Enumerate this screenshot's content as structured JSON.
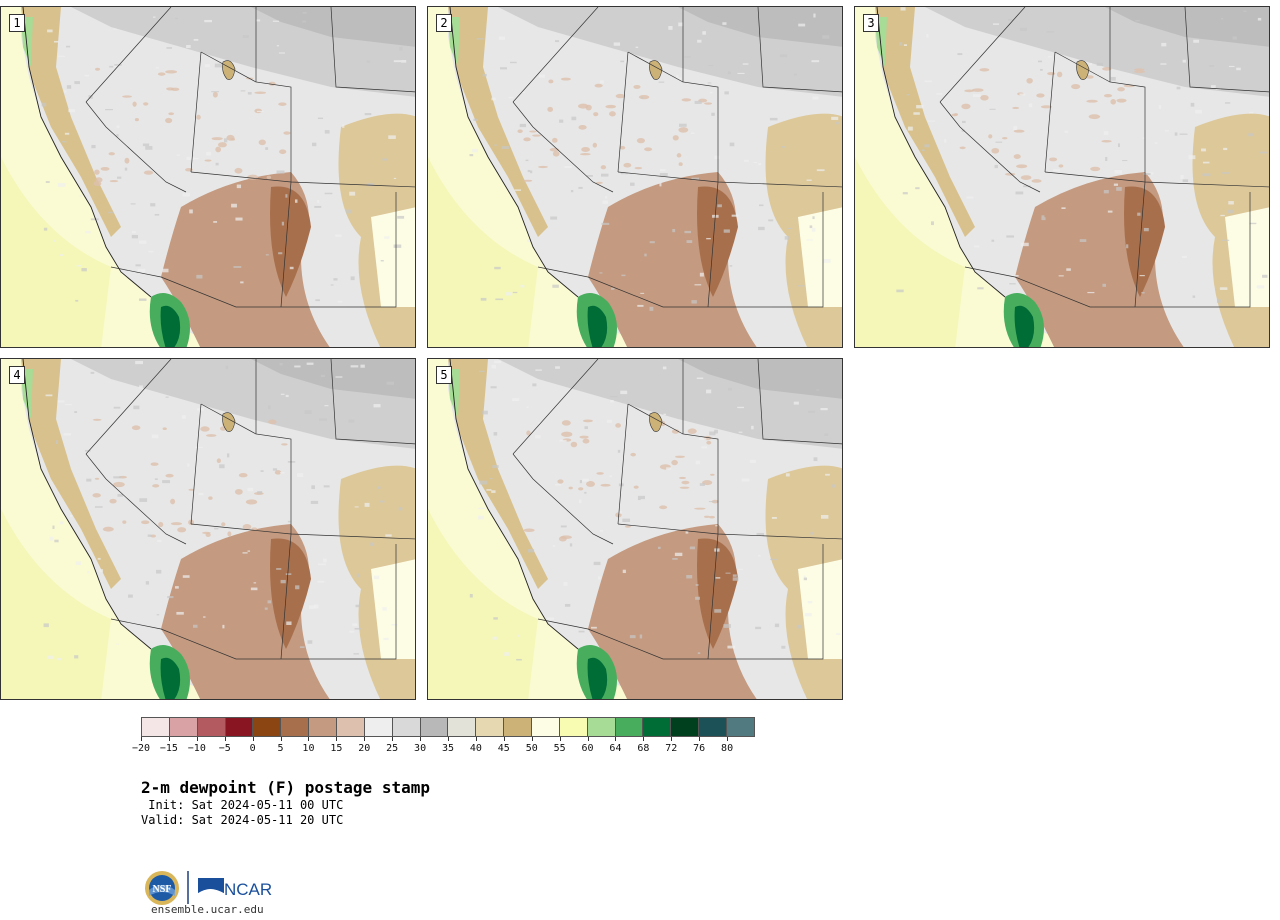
{
  "product": {
    "title": "2-m dewpoint (F) postage stamp",
    "init": " Init: Sat 2024-05-11 00 UTC",
    "valid": "Valid: Sat 2024-05-11 20 UTC"
  },
  "members": [
    {
      "label": "1"
    },
    {
      "label": "2"
    },
    {
      "label": "3"
    },
    {
      "label": "4"
    },
    {
      "label": "5"
    }
  ],
  "colorbar": {
    "tick_labels": [
      "−20",
      "−15",
      "−10",
      "−5",
      "0",
      "5",
      "10",
      "15",
      "20",
      "25",
      "30",
      "35",
      "40",
      "45",
      "50",
      "55",
      "60",
      "64",
      "68",
      "72",
      "76",
      "80"
    ],
    "colors": [
      "#f4e6e6",
      "#d9a3a5",
      "#b35a60",
      "#8a1522",
      "#8b4513",
      "#a86f4c",
      "#c49a80",
      "#ddc0ad",
      "#eeeeee",
      "#d9d9d9",
      "#b8b8b8",
      "#e2e2d8",
      "#e6d8b0",
      "#cdb277",
      "#fdfde6",
      "#f8fcb2",
      "#a6dc95",
      "#48ae5e",
      "#006d37",
      "#00401f",
      "#1c5158",
      "#507a80"
    ]
  },
  "logos": {
    "left_logo": "NSF",
    "right_logo": "NCAR"
  },
  "footer": {
    "url": "ensemble.ucar.edu"
  }
}
